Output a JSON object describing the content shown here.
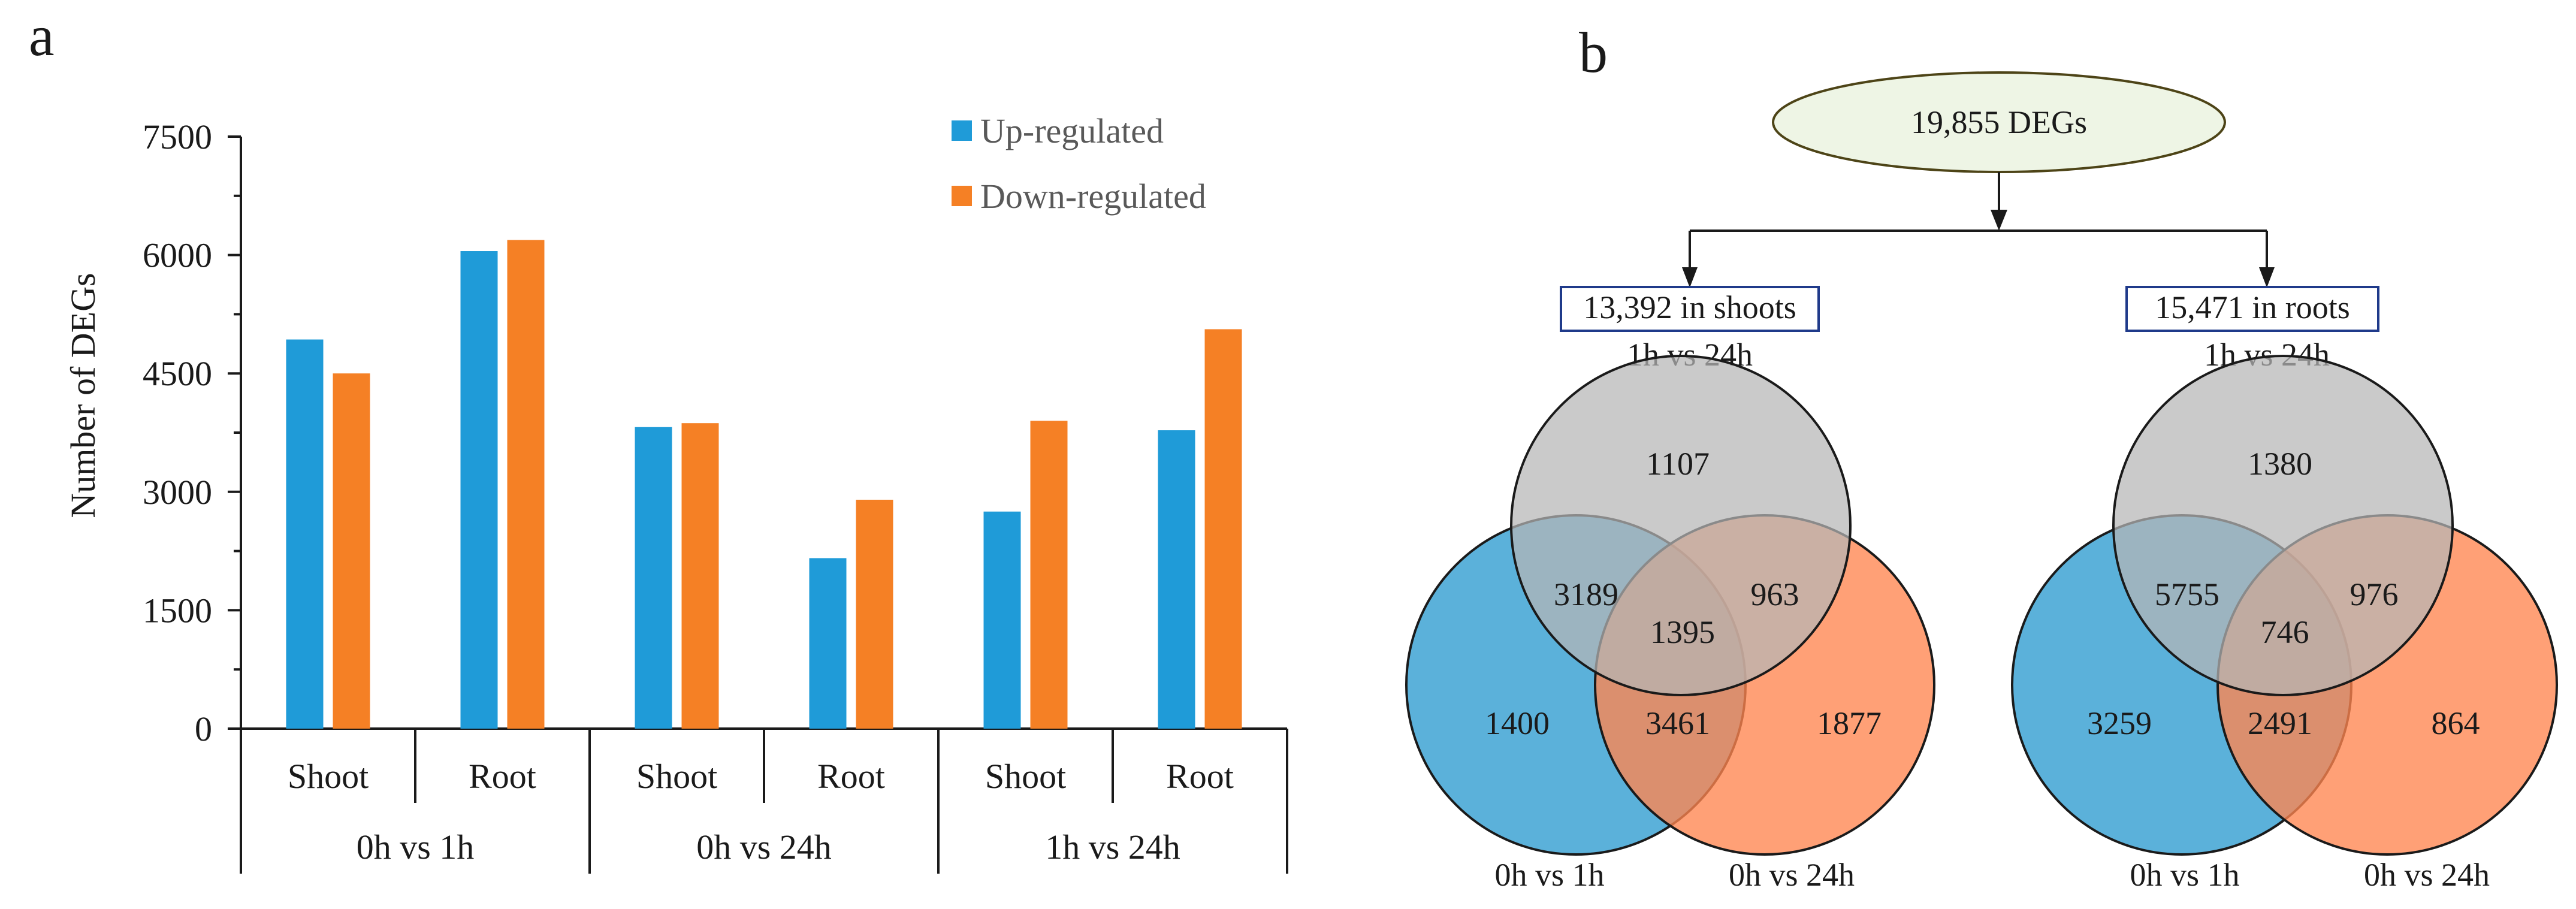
{
  "panel_labels": {
    "a": "a",
    "b": "b"
  },
  "colors": {
    "up": "#1f9bd8",
    "down": "#f58025",
    "axis": "#1a1a1a",
    "venn_top": "#b5b5b5",
    "venn_left": "#3ea3d3",
    "venn_right": "#ff8550",
    "ellipse_fill": "#eef5e5",
    "ellipse_stroke": "#4d4417",
    "box_stroke": "#1f3a8a"
  },
  "chart_data": {
    "type": "bar",
    "title": "",
    "xlabel": "",
    "ylabel": "Number of DEGs",
    "ylim": [
      0,
      7500
    ],
    "yticks": [
      0,
      1500,
      3000,
      4500,
      6000,
      7500
    ],
    "grid": false,
    "legend_position": "top-right",
    "categories": [
      "Shoot",
      "Root",
      "Shoot",
      "Root",
      "Shoot",
      "Root"
    ],
    "groups": [
      {
        "label": "0h vs 1h",
        "span": [
          0,
          1
        ]
      },
      {
        "label": "0h vs 24h",
        "span": [
          2,
          3
        ]
      },
      {
        "label": "1h vs 24h",
        "span": [
          4,
          5
        ]
      }
    ],
    "series": [
      {
        "name": "Up-regulated",
        "color": "#1f9bd8",
        "values": [
          4930,
          6050,
          3820,
          2160,
          2750,
          3780
        ]
      },
      {
        "name": "Down-regulated",
        "color": "#f58025",
        "values": [
          4500,
          6190,
          3870,
          2900,
          3900,
          5060
        ]
      }
    ]
  },
  "flow": {
    "total": "19,855 DEGs",
    "shoots_box": "13,392 in shoots",
    "roots_box": "15,471 in roots"
  },
  "venns": [
    {
      "name": "shoots",
      "top_label": "1h vs 24h",
      "left_label": "0h vs 1h",
      "right_label": "0h vs 24h",
      "regions": {
        "top_only": "1107",
        "top_left": "3189",
        "top_right": "963",
        "center": "1395",
        "left_only": "1400",
        "left_right": "3461",
        "right_only": "1877"
      }
    },
    {
      "name": "roots",
      "top_label": "1h vs 24h",
      "left_label": "0h vs 1h",
      "right_label": "0h vs 24h",
      "regions": {
        "top_only": "1380",
        "top_left": "5755",
        "top_right": "976",
        "center": "746",
        "left_only": "3259",
        "left_right": "2491",
        "right_only": "864"
      }
    }
  ]
}
